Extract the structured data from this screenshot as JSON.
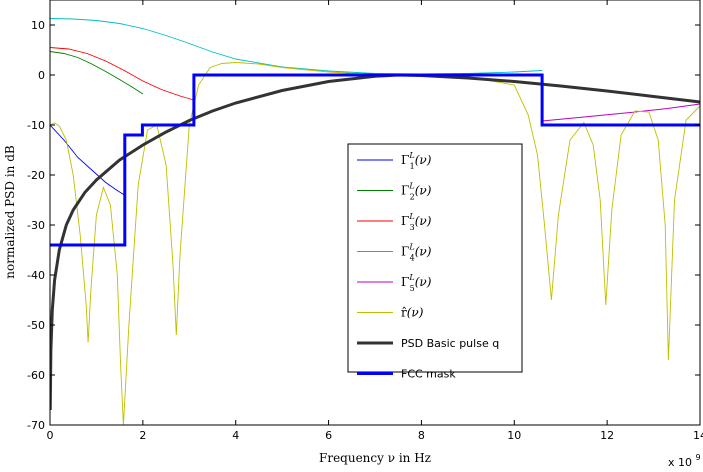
{
  "chart_data": {
    "type": "line",
    "xlabel": "Frequency ν in Hz",
    "ylabel": "normalized PSD in dB",
    "x_multiplier": "x 10",
    "x_multiplier_exp": "9",
    "xlim": [
      0,
      14
    ],
    "ylim": [
      -70,
      15
    ],
    "xticks": [
      0,
      2,
      4,
      6,
      8,
      10,
      12,
      14
    ],
    "yticks": [
      10,
      0,
      -10,
      -20,
      -30,
      -40,
      -50,
      -60,
      -70
    ],
    "grid": false,
    "legend_position": "center-right",
    "series": [
      {
        "name": "Γ1L(ν)",
        "legend": {
          "base": "Γ",
          "sup": "L",
          "sub": "1",
          "arg": "(ν)"
        },
        "color": "#0000ff",
        "width": 0.9,
        "x": [
          0,
          0.3,
          0.6,
          0.9,
          1.2,
          1.4,
          1.6
        ],
        "y": [
          -10,
          -13,
          -16.5,
          -19,
          -21.5,
          -22.8,
          -24
        ]
      },
      {
        "name": "Γ2L(ν)",
        "legend": {
          "base": "Γ",
          "sup": "L",
          "sub": "2",
          "arg": "(ν)"
        },
        "color": "#008000",
        "width": 0.9,
        "x": [
          0,
          0.3,
          0.6,
          0.9,
          1.2,
          1.5,
          1.8,
          2.0
        ],
        "y": [
          4.7,
          4.3,
          3.5,
          2.2,
          0.7,
          -0.9,
          -2.6,
          -3.8
        ]
      },
      {
        "name": "Γ3L(ν)",
        "legend": {
          "base": "Γ",
          "sup": "L",
          "sub": "3",
          "arg": "(ν)"
        },
        "color": "#ff0000",
        "width": 0.9,
        "x": [
          0,
          0.4,
          0.8,
          1.2,
          1.6,
          2.0,
          2.4,
          2.8,
          3.1
        ],
        "y": [
          5.5,
          5.2,
          4.3,
          2.8,
          0.9,
          -1.2,
          -2.9,
          -4.2,
          -5.0
        ]
      },
      {
        "name": "Γ4L(ν)",
        "legend": {
          "base": "Γ",
          "sup": "L",
          "sub": "4",
          "arg": "(ν)"
        },
        "color": "#00bfbf",
        "width": 0.9,
        "x": [
          0,
          0.5,
          1.0,
          1.5,
          2.0,
          2.5,
          3.0,
          3.5,
          4.0,
          5.0,
          6.0,
          7.0,
          8.0,
          9.0,
          10.0,
          10.6
        ],
        "y": [
          11.3,
          11.2,
          10.9,
          10.3,
          9.3,
          7.9,
          6.3,
          4.6,
          3.2,
          1.6,
          0.8,
          0.3,
          0.2,
          0.3,
          0.6,
          0.9
        ]
      },
      {
        "name": "Γ5L(ν)",
        "legend": {
          "base": "Γ",
          "sup": "L",
          "sub": "5",
          "arg": "(ν)"
        },
        "color": "#bf00bf",
        "width": 0.9,
        "x": [
          10.6,
          11.5,
          12.5,
          13.3,
          14.0
        ],
        "y": [
          -9.2,
          -8.4,
          -7.5,
          -6.7,
          -5.8
        ]
      },
      {
        "name": "r̂(ν)",
        "legend": {
          "base": "r̂",
          "sup": "",
          "sub": "",
          "arg": "(ν)"
        },
        "color": "#bfbf00",
        "width": 0.9,
        "x": [
          0,
          0.1,
          0.2,
          0.35,
          0.5,
          0.65,
          0.78,
          0.82,
          0.88,
          1.0,
          1.15,
          1.3,
          1.45,
          1.52,
          1.58,
          1.7,
          1.9,
          2.1,
          2.3,
          2.5,
          2.65,
          2.72,
          2.8,
          3.0,
          3.2,
          3.45,
          3.7,
          4.0,
          4.5,
          5.0,
          6.0,
          7.0,
          8.0,
          9.0,
          10.0,
          10.3,
          10.5,
          10.65,
          10.8,
          10.95,
          11.2,
          11.5,
          11.7,
          11.85,
          11.97,
          12.1,
          12.3,
          12.6,
          12.9,
          13.1,
          13.25,
          13.32,
          13.45,
          13.7,
          14.0
        ],
        "y": [
          -10,
          -9.6,
          -10.2,
          -13,
          -20,
          -32,
          -46,
          -53.5,
          -43,
          -28,
          -22.5,
          -26,
          -40,
          -58,
          -70,
          -50,
          -22,
          -11,
          -10,
          -18,
          -38,
          -52,
          -36,
          -10,
          -2,
          1.5,
          2.3,
          2.5,
          2.2,
          1.5,
          0.6,
          0.1,
          0.0,
          -0.4,
          -2,
          -8,
          -16,
          -30,
          -45,
          -28,
          -13,
          -9.5,
          -14,
          -25,
          -46,
          -27,
          -12,
          -7.2,
          -7.4,
          -13,
          -30,
          -57,
          -25,
          -9,
          -6.2
        ]
      },
      {
        "name": "PSD Basic pulse q",
        "legend": {
          "base": "PSD Basic pulse  q",
          "sup": "",
          "sub": "",
          "arg": ""
        },
        "color": "#333333",
        "width": 3,
        "x": [
          0.005,
          0.02,
          0.05,
          0.1,
          0.2,
          0.35,
          0.5,
          0.75,
          1.0,
          1.5,
          2.0,
          2.5,
          3.0,
          3.5,
          4.0,
          5.0,
          6.0,
          7.0,
          7.5,
          8.0,
          9.0,
          10.0,
          11.0,
          12.0,
          13.0,
          14.0
        ],
        "y": [
          -67,
          -55,
          -47,
          -41,
          -35,
          -30,
          -27,
          -23.5,
          -21,
          -17,
          -14,
          -11.4,
          -9.1,
          -7.2,
          -5.6,
          -3.1,
          -1.3,
          -0.25,
          0.0,
          -0.1,
          -0.6,
          -1.3,
          -2.2,
          -3.2,
          -4.3,
          -5.4
        ]
      },
      {
        "name": "FCC mask",
        "legend": {
          "base": "FCC mask",
          "sup": "",
          "sub": "",
          "arg": ""
        },
        "color": "#0000ff",
        "width": 3,
        "x": [
          0,
          1.61,
          1.61,
          1.99,
          1.99,
          3.1,
          3.1,
          10.6,
          10.6,
          14.0
        ],
        "y": [
          -34,
          -34,
          -12,
          -12,
          -10,
          -10,
          0,
          0,
          -10,
          -10
        ]
      }
    ]
  }
}
